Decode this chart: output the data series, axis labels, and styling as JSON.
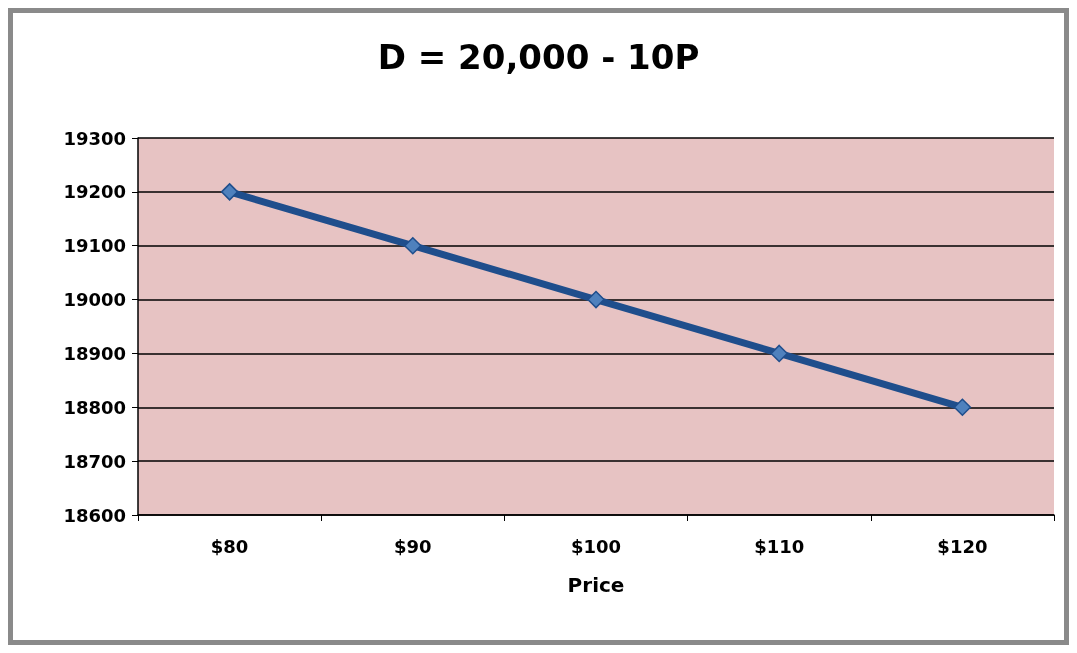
{
  "chart_data": {
    "type": "line",
    "title": "D = 20,000 - 10P",
    "xlabel": "Price",
    "categories": [
      "$80",
      "$90",
      "$100",
      "$110",
      "$120"
    ],
    "series": [
      {
        "color": "#1f4e8c",
        "values": [
          19200,
          19100,
          19000,
          18900,
          18800
        ]
      }
    ],
    "ylim": [
      18600,
      19300
    ],
    "yticks": [
      18600,
      18700,
      18800,
      18900,
      19000,
      19100,
      19200,
      19300
    ],
    "grid": "y",
    "marker": "diamond",
    "line_style": "solid"
  }
}
